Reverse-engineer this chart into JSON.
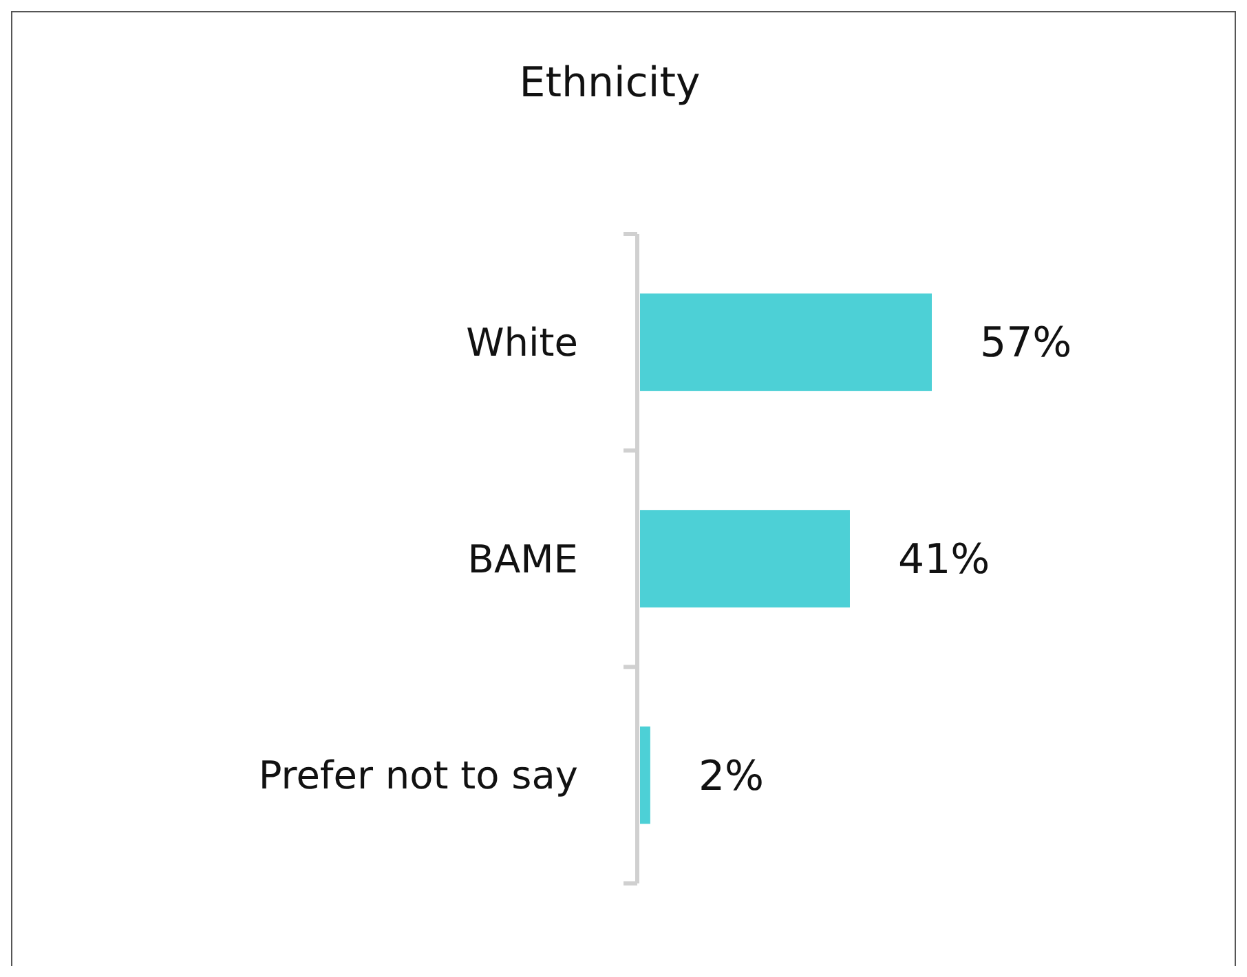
{
  "chart_data": {
    "type": "bar",
    "title": "Ethnicity",
    "orientation": "horizontal",
    "relative": false,
    "categories": [
      "White",
      "BAME",
      "Prefer not to say"
    ],
    "values": [
      57,
      41,
      2
    ],
    "color": "#4dd0d6",
    "value_labels": [
      "57%",
      "41%",
      "2%"
    ]
  }
}
